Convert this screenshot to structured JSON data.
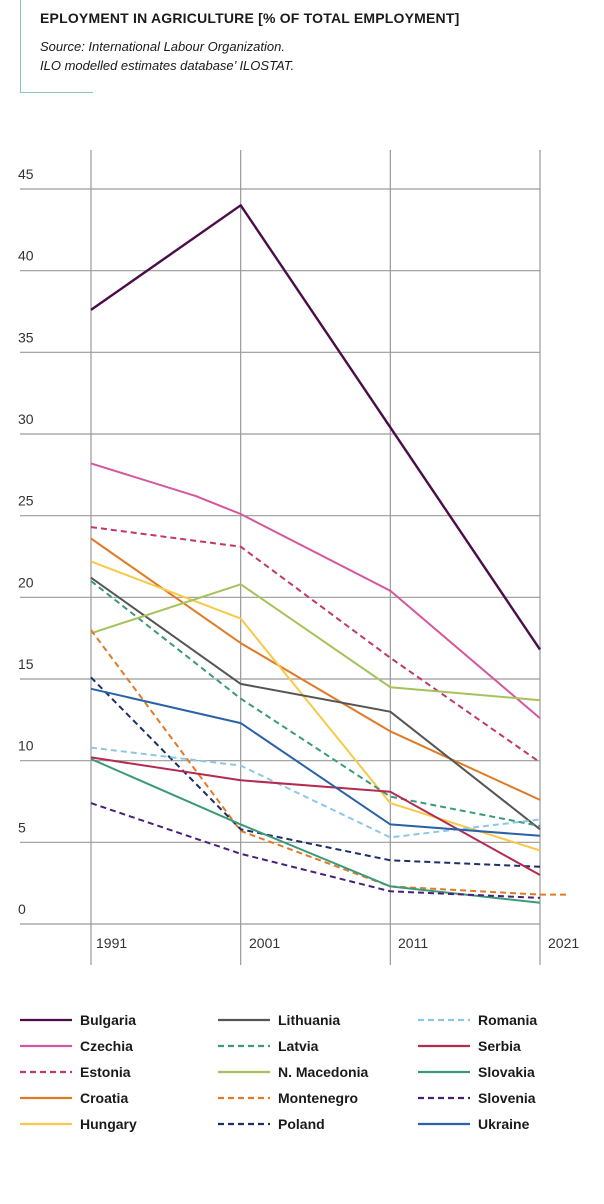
{
  "header": {
    "title": "EPLOYMENT IN AGRICULTURE [% OF TOTAL EMPLOYMENT]",
    "source_line1": "Source: International Labour Organization.",
    "source_line2": "ILO modelled estimates database’ ILOSTAT."
  },
  "chart_data": {
    "type": "line",
    "title": "EPLOYMENT IN AGRICULTURE [% OF TOTAL EMPLOYMENT]",
    "xlabel": "",
    "ylabel": "",
    "xlim": [
      1990,
      2022
    ],
    "ylim": [
      -1.5,
      46
    ],
    "x_ticks": [
      "1991",
      "2001",
      "2011",
      "2021"
    ],
    "y_ticks": [
      "0",
      "5",
      "10",
      "15",
      "20",
      "25",
      "30",
      "35",
      "40",
      "45"
    ],
    "grid": true,
    "legend_position": "bottom",
    "series": [
      {
        "name": "Bulgaria",
        "color": "#4a0d47",
        "dash": "solid",
        "points": [
          [
            1990,
            37.6
          ],
          [
            2000,
            44.0
          ],
          [
            2020,
            16.8
          ]
        ]
      },
      {
        "name": "Czechia",
        "color": "#d4579e",
        "dash": "solid",
        "points": [
          [
            1990,
            28.2
          ],
          [
            1997,
            26.2
          ],
          [
            2000,
            25.1
          ],
          [
            2010,
            20.4
          ],
          [
            2020,
            12.6
          ]
        ]
      },
      {
        "name": "Estonia",
        "color": "#c0386b",
        "dash": "dashed",
        "points": [
          [
            1990,
            24.3
          ],
          [
            2000,
            23.1
          ],
          [
            2010,
            16.3
          ],
          [
            2020,
            9.9
          ]
        ]
      },
      {
        "name": "Croatia",
        "color": "#e07a25",
        "dash": "solid",
        "points": [
          [
            1990,
            23.6
          ],
          [
            2000,
            17.2
          ],
          [
            2010,
            11.8
          ],
          [
            2020,
            7.6
          ]
        ]
      },
      {
        "name": "Hungary",
        "color": "#f7c948",
        "dash": "solid",
        "points": [
          [
            1990,
            22.2
          ],
          [
            2000,
            18.7
          ],
          [
            2010,
            7.4
          ],
          [
            2020,
            4.5
          ]
        ]
      },
      {
        "name": "Lithuania",
        "color": "#555555",
        "dash": "solid",
        "points": [
          [
            1990,
            21.2
          ],
          [
            2000,
            14.7
          ],
          [
            2010,
            13.0
          ],
          [
            2020,
            5.8
          ]
        ]
      },
      {
        "name": "Latvia",
        "color": "#3a9a79",
        "dash": "dashed",
        "points": [
          [
            1990,
            21.0
          ],
          [
            2000,
            13.8
          ],
          [
            2010,
            7.8
          ],
          [
            2020,
            6.0
          ]
        ]
      },
      {
        "name": "N. Macedonia",
        "color": "#a6c25a",
        "dash": "solid",
        "points": [
          [
            1990,
            17.8
          ],
          [
            2000,
            20.8
          ],
          [
            2010,
            14.5
          ],
          [
            2020,
            13.7
          ]
        ]
      },
      {
        "name": "Montenegro",
        "color": "#e07a25",
        "dash": "dashed",
        "points": [
          [
            1990,
            18.0
          ],
          [
            2000,
            5.7
          ],
          [
            2010,
            2.3
          ],
          [
            2020,
            1.8
          ],
          [
            2022,
            1.8
          ]
        ]
      },
      {
        "name": "Poland",
        "color": "#1e2e66",
        "dash": "dashed",
        "points": [
          [
            1990,
            15.1
          ],
          [
            2000,
            5.8
          ],
          [
            2010,
            3.9
          ],
          [
            2020,
            3.5
          ]
        ]
      },
      {
        "name": "Romania",
        "color": "#8ec7e6",
        "dash": "dashed",
        "points": [
          [
            1990,
            10.8
          ],
          [
            2000,
            9.7
          ],
          [
            2010,
            5.3
          ],
          [
            2020,
            6.4
          ]
        ]
      },
      {
        "name": "Serbia",
        "color": "#b52a4f",
        "dash": "solid",
        "points": [
          [
            1990,
            10.2
          ],
          [
            2000,
            8.8
          ],
          [
            2010,
            8.1
          ],
          [
            2020,
            3.0
          ]
        ]
      },
      {
        "name": "Slovakia",
        "color": "#3a9a79",
        "dash": "solid",
        "points": [
          [
            1990,
            10.1
          ],
          [
            2000,
            6.1
          ],
          [
            2010,
            2.3
          ],
          [
            2020,
            1.3
          ]
        ]
      },
      {
        "name": "Slovenia",
        "color": "#4a1f7a",
        "dash": "dashed",
        "points": [
          [
            1990,
            7.4
          ],
          [
            2000,
            4.3
          ],
          [
            2010,
            2.0
          ],
          [
            2020,
            1.6
          ]
        ]
      },
      {
        "name": "Ukraine",
        "color": "#2a62a8",
        "dash": "solid",
        "points": [
          [
            1990,
            14.4
          ],
          [
            2000,
            12.3
          ],
          [
            2010,
            6.1
          ],
          [
            2020,
            5.4
          ]
        ]
      }
    ]
  }
}
